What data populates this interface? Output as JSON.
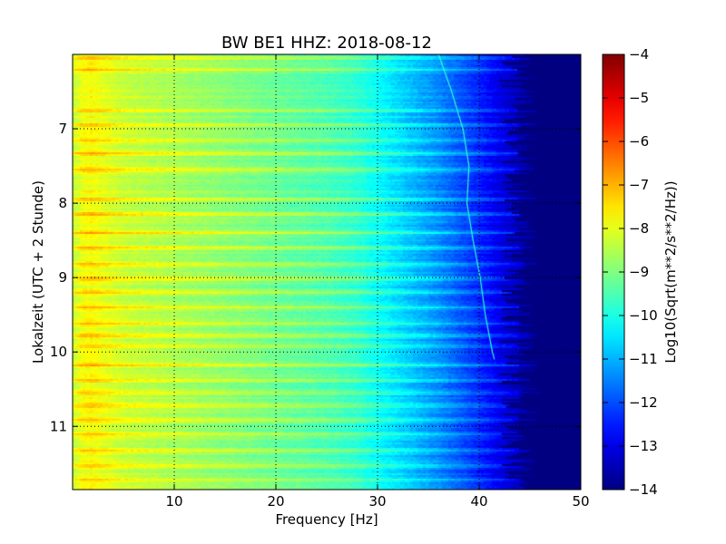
{
  "chart_data": {
    "type": "heatmap",
    "title": "BW BE1 HHZ: 2018-08-12",
    "xlabel": "Frequency [Hz]",
    "ylabel": "Lokalzeit (UTC + 2 Stunde)",
    "xlim": [
      0,
      50
    ],
    "ylim": [
      6.0,
      11.85
    ],
    "y_inverted": true,
    "x_ticks": [
      10,
      20,
      30,
      40,
      50
    ],
    "x_tick_labels": [
      "10",
      "20",
      "30",
      "40",
      "50"
    ],
    "y_ticks": [
      7,
      8,
      9,
      10,
      11
    ],
    "y_tick_labels": [
      "7",
      "8",
      "9",
      "10",
      "11"
    ],
    "grid": true,
    "colormap": "jet",
    "colorbar": {
      "label": "Log10(Sqrt(m**2/s**2/Hz))",
      "range": [
        -14,
        -4
      ],
      "ticks": [
        -4,
        -5,
        -6,
        -7,
        -8,
        -9,
        -10,
        -11,
        -12,
        -13,
        -14
      ],
      "tick_labels": [
        "−4",
        "−5",
        "−6",
        "−7",
        "−8",
        "−9",
        "−10",
        "−11",
        "−12",
        "−13",
        "−14"
      ]
    },
    "spectral_profile": {
      "frequency_hz": [
        0,
        1,
        2,
        3,
        5,
        10,
        15,
        20,
        25,
        28,
        30,
        32,
        34,
        36,
        38,
        40,
        42,
        44,
        46,
        50
      ],
      "log10_amplitude": [
        -8.4,
        -7.9,
        -7.8,
        -8.0,
        -8.3,
        -8.6,
        -8.9,
        -9.2,
        -9.5,
        -9.8,
        -10.2,
        -10.6,
        -11.0,
        -11.4,
        -11.9,
        -12.4,
        -13.0,
        -13.5,
        -14.0,
        -14.0
      ]
    },
    "bright_band_times": [
      6.05,
      6.2,
      6.75,
      6.95,
      7.15,
      7.33,
      7.55,
      7.95,
      8.15,
      8.4,
      8.6,
      8.83,
      9.02,
      9.2,
      9.4,
      9.62,
      9.78,
      9.92,
      10.18,
      10.38,
      10.55,
      10.72,
      10.92,
      11.1,
      11.33,
      11.52,
      11.72
    ],
    "sweep_line": {
      "time": [
        6.0,
        6.5,
        7.0,
        7.5,
        8.0,
        8.5,
        9.0,
        9.5,
        10.0,
        10.1
      ],
      "frequency_hz": [
        36.0,
        37.3,
        38.4,
        39.0,
        38.8,
        39.4,
        40.1,
        40.6,
        41.3,
        41.5
      ]
    }
  }
}
